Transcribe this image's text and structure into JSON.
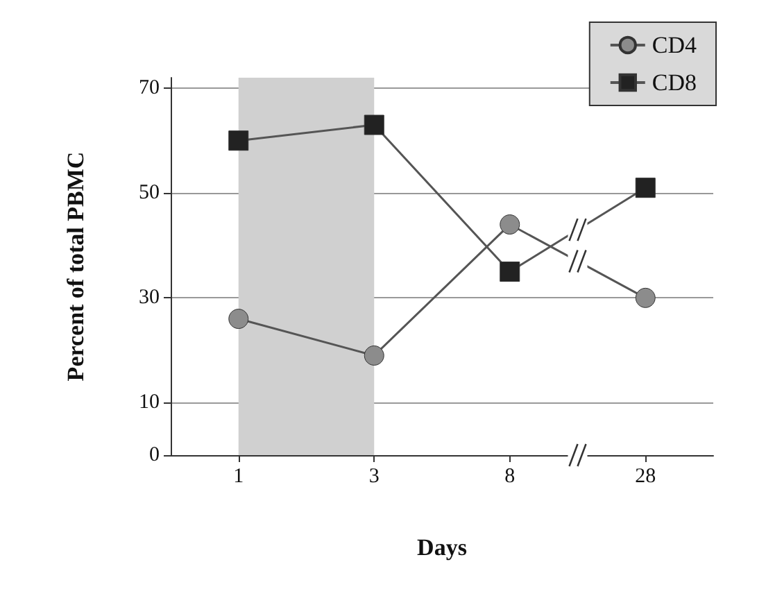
{
  "chart_data": {
    "type": "line",
    "xlabel": "Days",
    "ylabel": "Percent of total PBMC",
    "categories": [
      "1",
      "3",
      "8",
      "28"
    ],
    "series": [
      {
        "name": "CD4",
        "color": "#8c8c8c",
        "marker": "circle",
        "values": [
          26,
          19,
          44,
          30
        ]
      },
      {
        "name": "CD8",
        "color": "#222222",
        "marker": "square",
        "values": [
          60,
          63,
          35,
          51
        ]
      }
    ],
    "ylim": [
      0,
      72
    ],
    "yticks": [
      0,
      10,
      30,
      50,
      70
    ],
    "grid": "y",
    "legend": "top right",
    "bands": [
      {
        "axis": "x",
        "from": "1",
        "to": "3",
        "color": "#d0d0d0"
      }
    ]
  }
}
